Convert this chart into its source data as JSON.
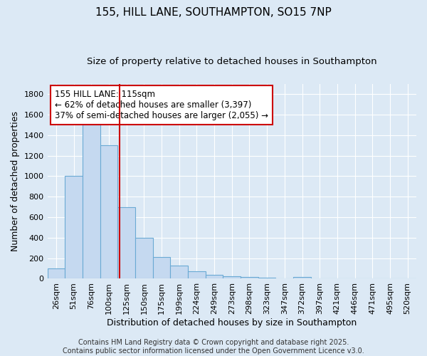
{
  "title_line1": "155, HILL LANE, SOUTHAMPTON, SO15 7NP",
  "title_line2": "Size of property relative to detached houses in Southampton",
  "xlabel": "Distribution of detached houses by size in Southampton",
  "ylabel": "Number of detached properties",
  "categories": [
    "26sqm",
    "51sqm",
    "76sqm",
    "100sqm",
    "125sqm",
    "150sqm",
    "175sqm",
    "199sqm",
    "224sqm",
    "249sqm",
    "273sqm",
    "298sqm",
    "323sqm",
    "347sqm",
    "372sqm",
    "397sqm",
    "421sqm",
    "446sqm",
    "471sqm",
    "495sqm",
    "520sqm"
  ],
  "values": [
    100,
    1000,
    1500,
    1300,
    700,
    400,
    210,
    130,
    70,
    35,
    25,
    15,
    10,
    2,
    15,
    2,
    2,
    2,
    2,
    2,
    2
  ],
  "bar_color": "#c5d9f0",
  "bar_edge_color": "#6aaad4",
  "background_color": "#dce9f5",
  "grid_color": "#ffffff",
  "vline_color": "#cc0000",
  "vline_pos": 3.6,
  "annotation_text": "155 HILL LANE: 115sqm\n← 62% of detached houses are smaller (3,397)\n37% of semi-detached houses are larger (2,055) →",
  "annotation_box_color": "#ffffff",
  "annotation_box_edge": "#cc0000",
  "ylim": [
    0,
    1900
  ],
  "yticks": [
    0,
    200,
    400,
    600,
    800,
    1000,
    1200,
    1400,
    1600,
    1800
  ],
  "footer_text": "Contains HM Land Registry data © Crown copyright and database right 2025.\nContains public sector information licensed under the Open Government Licence v3.0.",
  "title_fontsize": 11,
  "subtitle_fontsize": 9.5,
  "axis_label_fontsize": 9,
  "tick_fontsize": 8,
  "annotation_fontsize": 8.5,
  "footer_fontsize": 7
}
